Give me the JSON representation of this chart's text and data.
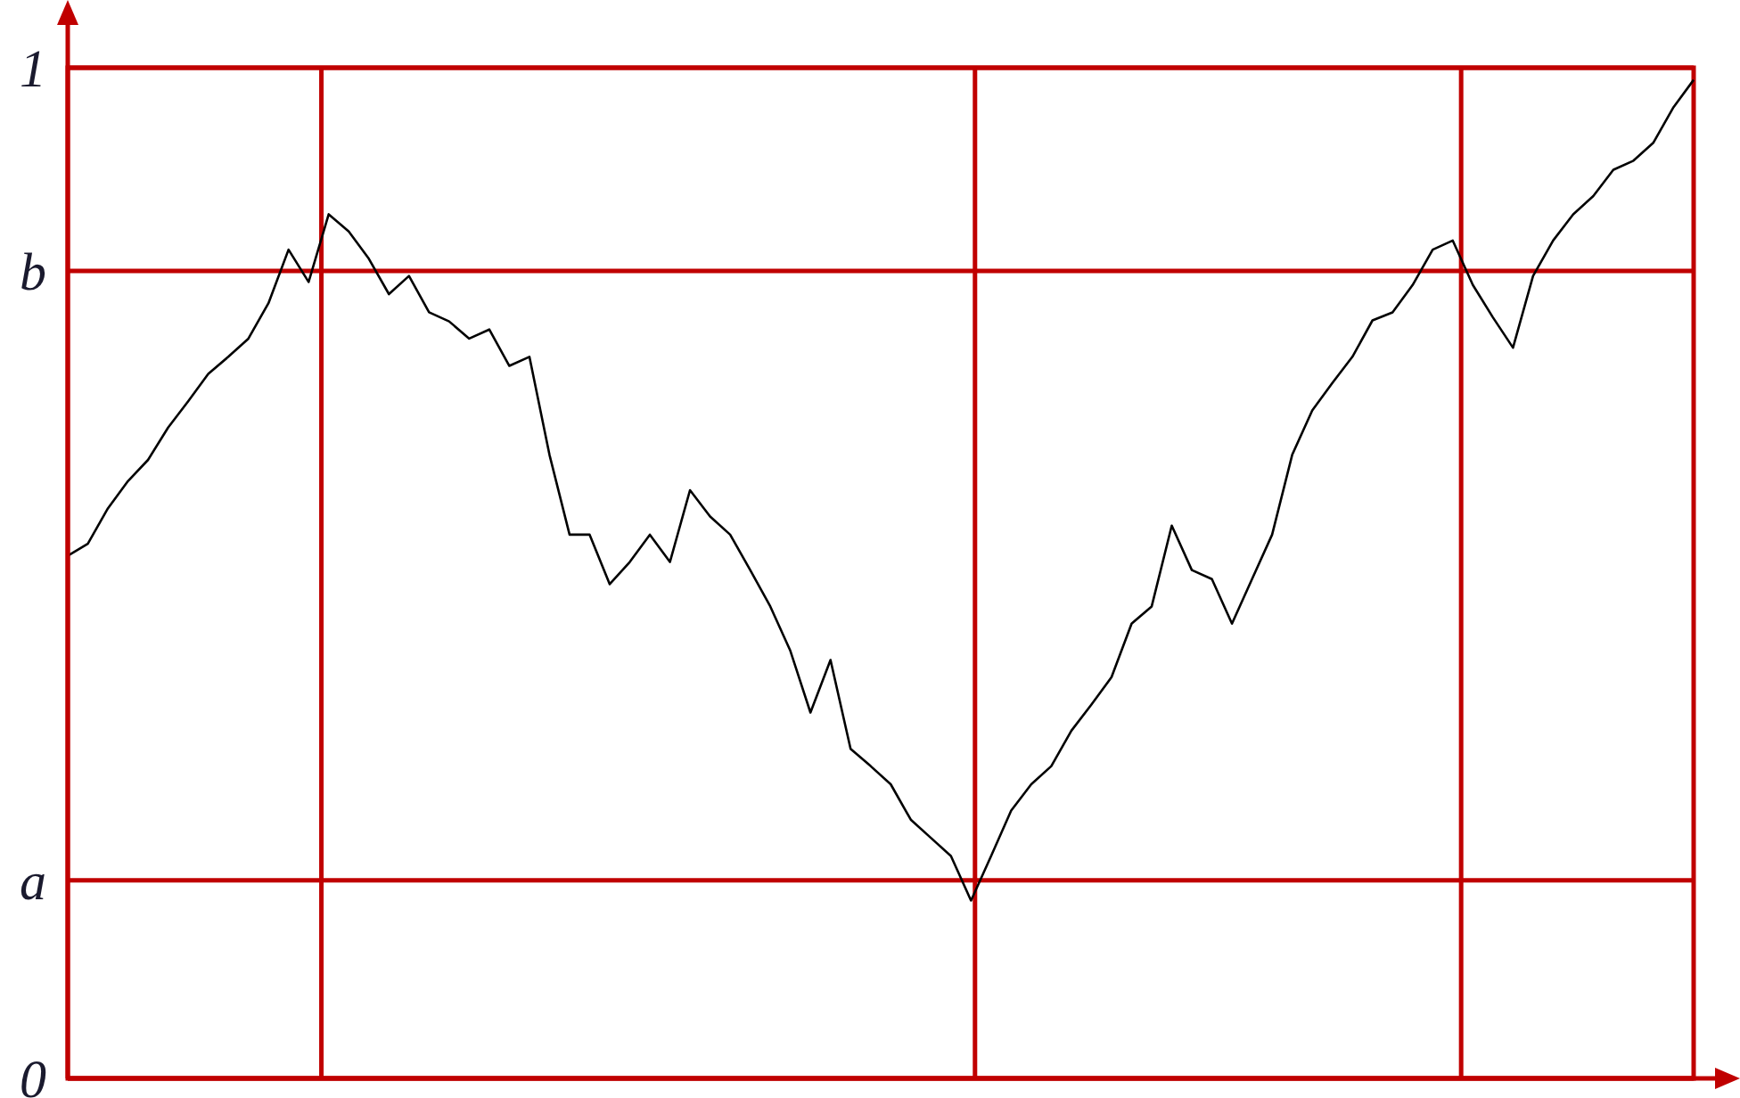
{
  "chart_data": {
    "type": "line",
    "categories": [
      null,
      null,
      null,
      null,
      null,
      null,
      null,
      null,
      null,
      null,
      null,
      null,
      null,
      null,
      null,
      null,
      null,
      null,
      null,
      null,
      null,
      null,
      null,
      null,
      null,
      null,
      null,
      null,
      null,
      null,
      null,
      null,
      null,
      null,
      null,
      null,
      null,
      null,
      null,
      null,
      null,
      null,
      null,
      null,
      null,
      null,
      null,
      null,
      null,
      null,
      null,
      null,
      null,
      null,
      null,
      null,
      null,
      null,
      null,
      null,
      null,
      null,
      null,
      null,
      null,
      null,
      null,
      null,
      null,
      null,
      null,
      null,
      null,
      null,
      null,
      null,
      null,
      null,
      null,
      null,
      null,
      null
    ],
    "ylim": [
      0,
      1
    ],
    "yticks": [
      0,
      {
        "value": 0.196,
        "label": "a"
      },
      {
        "value": 0.799,
        "label": "b"
      },
      1
    ],
    "tick_labels": "y",
    "grid": "y",
    "marker": "none",
    "line_style": "solid",
    "series": [
      {
        "color": "#000000",
        "values": [
          0.517,
          0.529,
          0.564,
          0.591,
          0.612,
          0.644,
          0.67,
          0.697,
          0.714,
          0.732,
          0.767,
          0.82,
          0.788,
          0.855,
          0.838,
          0.811,
          0.776,
          0.794,
          0.758,
          0.749,
          0.732,
          0.741,
          0.705,
          0.714,
          0.617,
          0.538,
          0.538,
          0.489,
          0.511,
          0.538,
          0.511,
          0.582,
          0.556,
          0.538,
          0.503,
          0.467,
          0.423,
          0.362,
          0.414,
          0.326,
          0.309,
          0.291,
          0.256,
          0.238,
          0.22,
          0.176,
          0.22,
          0.265,
          0.291,
          0.309,
          0.344,
          0.37,
          0.397,
          0.45,
          0.467,
          0.547,
          0.503,
          0.494,
          0.45,
          0.494,
          0.538,
          0.617,
          0.661,
          0.688,
          0.714,
          0.75,
          0.758,
          0.785,
          0.82,
          0.829,
          0.785,
          0.753,
          0.723,
          0.794,
          0.829,
          0.855,
          0.873,
          0.899,
          0.908,
          0.926,
          0.961,
          0.988
        ]
      }
    ]
  }
}
